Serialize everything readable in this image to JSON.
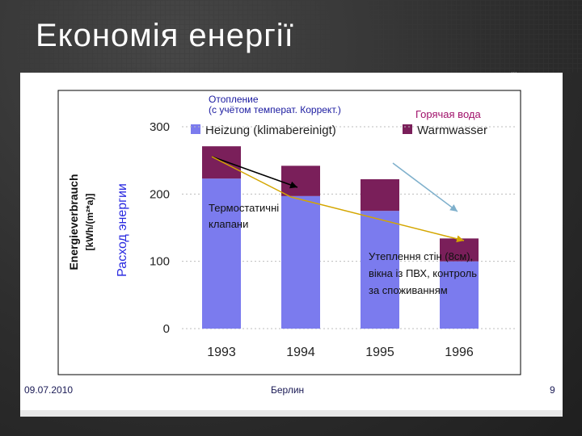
{
  "slide": {
    "title": "Економія енергії",
    "footer_date": "09.07.2010",
    "footer_place": "Берлин",
    "page_number": "9",
    "corner_mark": "...",
    "colors": {
      "heating": "#7b7bee",
      "hot_water": "#7a1f5a",
      "arrow_yellow": "#d4a600",
      "arrow_black": "#000000",
      "arrow_blue": "#7fb0cc"
    }
  },
  "chart_data": {
    "type": "bar",
    "stacked": true,
    "categories": [
      "1993",
      "1994",
      "1995",
      "1996"
    ],
    "series": [
      {
        "name": "Heizung (klimabereinigt)",
        "name_ru": "Отопление (с учётом температ. Коррект.)",
        "values": [
          223,
          197,
          175,
          100
        ]
      },
      {
        "name": "Warmwasser",
        "name_ru": "Горячая вода",
        "values": [
          48,
          45,
          47,
          34
        ]
      }
    ],
    "ylabel": "Energieverbrauch [kWh/(m²*a)]",
    "ylabel_ru": "Расход энергии",
    "yticks": [
      0,
      100,
      200,
      300
    ],
    "ylim": [
      0,
      300
    ],
    "legend": "top",
    "annotations": [
      {
        "text_lines": [
          "Термостатичні",
          "клапани"
        ]
      },
      {
        "text_lines": [
          "Утеплення стін (8см),",
          "вікна із ПВХ, контроль",
          "за споживанням"
        ]
      }
    ]
  }
}
